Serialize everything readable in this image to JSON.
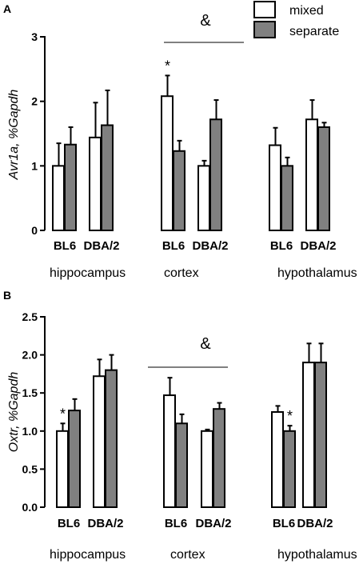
{
  "legend": {
    "entries": [
      {
        "label": "mixed",
        "color": "#ffffff"
      },
      {
        "label": "separate",
        "color": "#808080"
      }
    ]
  },
  "chart_data": [
    {
      "type": "bar",
      "panel": "A",
      "ylabel": "Avr1a, %Gapdh",
      "ylim": [
        0,
        3
      ],
      "yticks": [
        "0",
        "1",
        "2",
        "3"
      ],
      "groups": [
        {
          "region": "hippocampus",
          "strains": [
            "BL6",
            "DBA/2"
          ]
        },
        {
          "region": "cortex",
          "strains": [
            "BL6",
            "DBA/2"
          ]
        },
        {
          "region": "hypothalamus",
          "strains": [
            "BL6",
            "DBA/2"
          ]
        }
      ],
      "categories": [
        "BL6",
        "DBA/2",
        "BL6",
        "DBA/2",
        "BL6",
        "DBA/2"
      ],
      "series": [
        {
          "name": "mixed",
          "color": "#ffffff",
          "values": [
            1.0,
            1.44,
            2.08,
            1.0,
            1.32,
            1.72
          ],
          "errors": [
            0.35,
            0.54,
            0.32,
            0.08,
            0.27,
            0.3
          ]
        },
        {
          "name": "separate",
          "color": "#808080",
          "values": [
            1.33,
            1.63,
            1.23,
            1.72,
            1.0,
            1.6
          ],
          "errors": [
            0.27,
            0.54,
            0.16,
            0.3,
            0.13,
            0.07
          ]
        }
      ],
      "significance_stars": [
        {
          "category_index": 2,
          "series": "mixed",
          "text": "*"
        }
      ],
      "annotations": [
        {
          "text": "&",
          "over_region": "cortex"
        }
      ]
    },
    {
      "type": "bar",
      "panel": "B",
      "ylabel": "Oxtr, %Gapdh",
      "ylim": [
        0,
        2.5
      ],
      "yticks": [
        "0.0",
        "0.5",
        "1.0",
        "1.5",
        "2.0",
        "2.5"
      ],
      "groups": [
        {
          "region": "hippocampus",
          "strains": [
            "BL6",
            "DBA/2"
          ]
        },
        {
          "region": "cortex",
          "strains": [
            "BL6",
            "DBA/2"
          ]
        },
        {
          "region": "hypothalamus",
          "strains": [
            "BL6",
            "DBA/2"
          ]
        }
      ],
      "categories": [
        "BL6",
        "DBA/2",
        "BL6",
        "DBA/2",
        "BL6",
        "DBA/2"
      ],
      "series": [
        {
          "name": "mixed",
          "color": "#ffffff",
          "values": [
            1.0,
            1.72,
            1.47,
            1.0,
            1.25,
            1.9
          ],
          "errors": [
            0.1,
            0.22,
            0.23,
            0.02,
            0.08,
            0.25
          ]
        },
        {
          "name": "separate",
          "color": "#808080",
          "values": [
            1.27,
            1.8,
            1.1,
            1.29,
            1.0,
            1.9
          ],
          "errors": [
            0.15,
            0.2,
            0.12,
            0.08,
            0.07,
            0.25
          ]
        }
      ],
      "significance_stars": [
        {
          "category_index": 0,
          "series": "mixed",
          "text": "*"
        },
        {
          "category_index": 4,
          "series": "separate",
          "text": "*"
        }
      ],
      "annotations": [
        {
          "text": "&",
          "over_region": "cortex"
        }
      ]
    }
  ]
}
